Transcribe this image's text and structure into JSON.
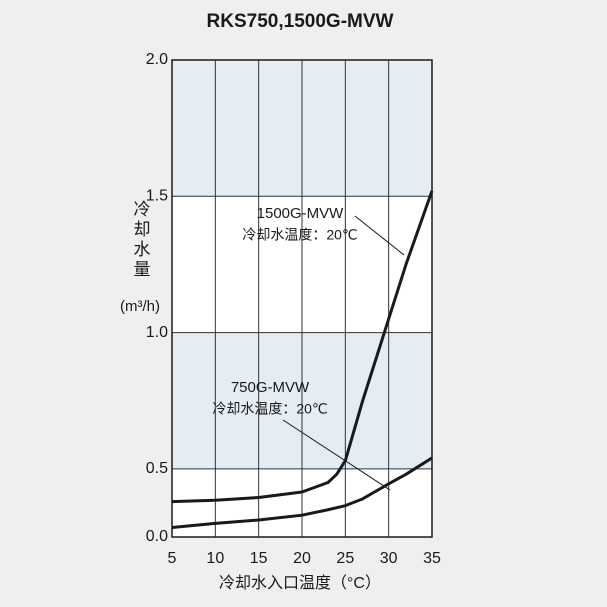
{
  "chart_data": {
    "type": "line",
    "title": "RKS750,1500G-MVW",
    "xlabel": "冷却水入口温度（°C）",
    "ylabel": "冷却水量",
    "ylabel_unit": "(m³/h)",
    "x": [
      5,
      10,
      15,
      20,
      23,
      24,
      25,
      27,
      30,
      32,
      35
    ],
    "series": [
      {
        "name": "1500G-MVW",
        "note": "冷却水温度：20℃",
        "color": "#1a1a1a",
        "values": [
          0.26,
          0.27,
          0.29,
          0.33,
          0.4,
          0.46,
          0.53,
          0.75,
          1.05,
          1.25,
          1.52
        ]
      },
      {
        "name": "750G-MVW",
        "note": "冷却水温度：20℃",
        "color": "#1a1a1a",
        "values": [
          0.07,
          0.1,
          0.125,
          0.16,
          0.2,
          0.215,
          0.23,
          0.28,
          0.39,
          0.46,
          0.54
        ]
      }
    ],
    "xlim": [
      5,
      35
    ],
    "xticks": [
      5,
      10,
      15,
      20,
      25,
      30,
      35
    ],
    "ylim": [
      0,
      2
    ],
    "yticks": [
      {
        "value": 0,
        "label": "0.0"
      },
      0.5,
      {
        "value": 1,
        "label": "1.0"
      },
      1.5,
      {
        "value": 2,
        "label": "2.0"
      }
    ],
    "grid": true
  }
}
